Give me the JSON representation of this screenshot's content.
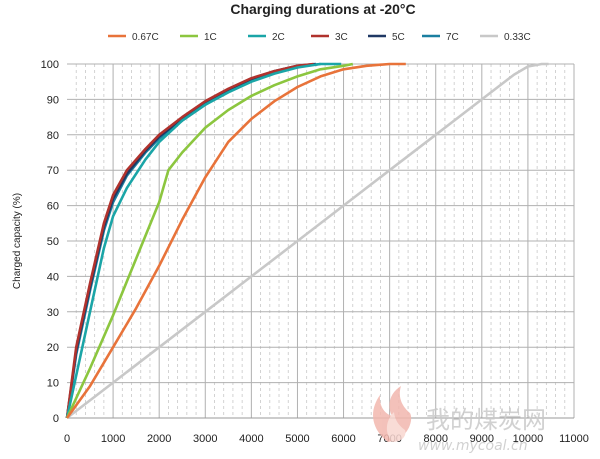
{
  "chart_data": {
    "type": "line",
    "title": "Charging durations at -20°C",
    "xlabel": "",
    "ylabel": "Charged capacity (%)",
    "xlim": [
      0,
      11000
    ],
    "ylim": [
      0,
      100
    ],
    "x_ticks": [
      0,
      1000,
      2000,
      3000,
      4000,
      5000,
      6000,
      7000,
      8000,
      9000,
      10000,
      11000
    ],
    "y_ticks": [
      0,
      10,
      20,
      30,
      40,
      50,
      60,
      70,
      80,
      90,
      100
    ],
    "grid": true,
    "legend_position": "top",
    "series": [
      {
        "name": "0.67C",
        "color": "#e8733a",
        "points": [
          [
            0,
            0
          ],
          [
            500,
            9
          ],
          [
            1000,
            20
          ],
          [
            1500,
            31
          ],
          [
            2000,
            43
          ],
          [
            2500,
            56
          ],
          [
            3000,
            68
          ],
          [
            3500,
            78
          ],
          [
            4000,
            84.5
          ],
          [
            4500,
            89.5
          ],
          [
            5000,
            93.5
          ],
          [
            5500,
            96.5
          ],
          [
            6000,
            98.5
          ],
          [
            6500,
            99.5
          ],
          [
            7000,
            100
          ],
          [
            7350,
            100
          ]
        ]
      },
      {
        "name": "1C",
        "color": "#8cc63f",
        "points": [
          [
            0,
            0
          ],
          [
            500,
            14
          ],
          [
            1000,
            29
          ],
          [
            1500,
            45
          ],
          [
            2000,
            61
          ],
          [
            2200,
            70
          ],
          [
            2500,
            75
          ],
          [
            3000,
            82
          ],
          [
            3500,
            87
          ],
          [
            4000,
            91
          ],
          [
            4500,
            94
          ],
          [
            5000,
            96.5
          ],
          [
            5500,
            98.5
          ],
          [
            6000,
            99.5
          ],
          [
            6200,
            100
          ]
        ]
      },
      {
        "name": "2C",
        "color": "#1aa5a7",
        "points": [
          [
            0,
            0
          ],
          [
            200,
            12
          ],
          [
            500,
            30
          ],
          [
            800,
            48
          ],
          [
            1000,
            57
          ],
          [
            1300,
            65
          ],
          [
            1700,
            73
          ],
          [
            2000,
            78
          ],
          [
            2500,
            84
          ],
          [
            3000,
            88.5
          ],
          [
            3500,
            92
          ],
          [
            4000,
            95
          ],
          [
            4500,
            97.3
          ],
          [
            5000,
            99
          ],
          [
            5500,
            100
          ],
          [
            5950,
            100
          ]
        ]
      },
      {
        "name": "3C",
        "color": "#b0322d",
        "points": [
          [
            0,
            0
          ],
          [
            200,
            20
          ],
          [
            500,
            38
          ],
          [
            800,
            55
          ],
          [
            1000,
            63
          ],
          [
            1300,
            70
          ],
          [
            1700,
            76
          ],
          [
            2000,
            80
          ],
          [
            2500,
            85
          ],
          [
            3000,
            89.5
          ],
          [
            3500,
            93
          ],
          [
            4000,
            96
          ],
          [
            4500,
            98
          ],
          [
            5000,
            99.5
          ],
          [
            5350,
            100
          ]
        ]
      },
      {
        "name": "5C",
        "color": "#1f3864",
        "points": [
          [
            0,
            0
          ],
          [
            200,
            19
          ],
          [
            500,
            37
          ],
          [
            800,
            54
          ],
          [
            1000,
            62
          ],
          [
            1300,
            69
          ],
          [
            1700,
            75.5
          ],
          [
            2000,
            79.5
          ],
          [
            2500,
            84.5
          ],
          [
            3000,
            89
          ],
          [
            3500,
            92.8
          ],
          [
            4000,
            95.8
          ],
          [
            4500,
            98
          ],
          [
            5000,
            99.5
          ],
          [
            5400,
            100
          ]
        ]
      },
      {
        "name": "7C",
        "color": "#1a7fa0",
        "points": [
          [
            0,
            0
          ],
          [
            200,
            18
          ],
          [
            500,
            36
          ],
          [
            800,
            53
          ],
          [
            1000,
            61
          ],
          [
            1300,
            68.5
          ],
          [
            1700,
            75
          ],
          [
            2000,
            79
          ],
          [
            2500,
            84
          ],
          [
            3000,
            88.5
          ],
          [
            3500,
            92.5
          ],
          [
            4000,
            95.5
          ],
          [
            4500,
            97.8
          ],
          [
            5000,
            99.3
          ],
          [
            5500,
            100
          ]
        ]
      },
      {
        "name": "0.33C",
        "color": "#c8c8c8",
        "points": [
          [
            0,
            0
          ],
          [
            1000,
            10
          ],
          [
            2000,
            20
          ],
          [
            3000,
            30
          ],
          [
            4000,
            40
          ],
          [
            5000,
            50
          ],
          [
            6000,
            60
          ],
          [
            7000,
            70
          ],
          [
            8000,
            80
          ],
          [
            9000,
            90
          ],
          [
            9700,
            97
          ],
          [
            10000,
            99.3
          ],
          [
            10300,
            100
          ],
          [
            10450,
            100
          ]
        ]
      }
    ]
  },
  "watermark": {
    "logo": "mycoal-flame-logo",
    "text_cn": "我的煤炭网",
    "text_url": "www.mycoal.cn"
  }
}
